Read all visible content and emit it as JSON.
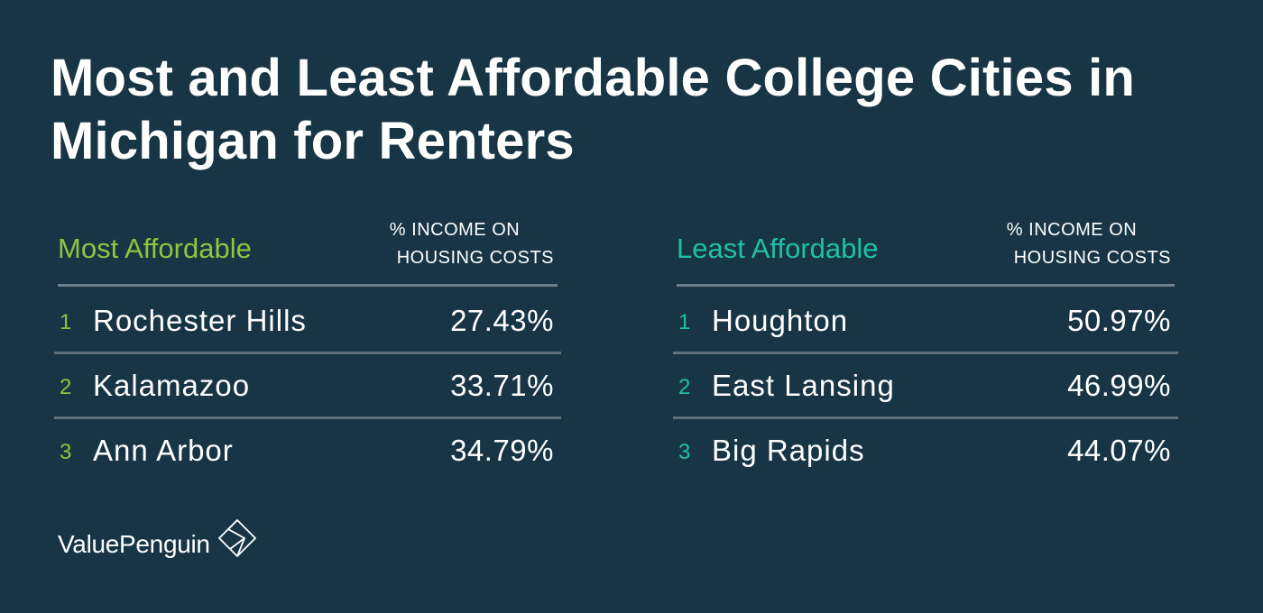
{
  "title": "Most and Least Affordable College Cities in Michigan for Renters",
  "brand": {
    "name": "ValuePenguin",
    "logo_icon": "diamond-logo-icon"
  },
  "colors": {
    "background": "#173544",
    "most_accent": "#8dc63f",
    "least_accent": "#1fc0a8"
  },
  "chart_data": {
    "type": "table",
    "title": "Most and Least Affordable College Cities in Michigan for Renters",
    "tables": [
      {
        "label": "Most Affordable",
        "column_header_line1": "% INCOME ON",
        "column_header_line2": "HOUSING COSTS",
        "rows": [
          {
            "rank": "1",
            "city": "Rochester Hills",
            "value": "27.43%"
          },
          {
            "rank": "2",
            "city": "Kalamazoo",
            "value": "33.71%"
          },
          {
            "rank": "3",
            "city": "Ann Arbor",
            "value": "34.79%"
          }
        ]
      },
      {
        "label": "Least Affordable",
        "column_header_line1": "% INCOME ON",
        "column_header_line2": "HOUSING COSTS",
        "rows": [
          {
            "rank": "1",
            "city": "Houghton",
            "value": "50.97%"
          },
          {
            "rank": "2",
            "city": "East Lansing",
            "value": "46.99%"
          },
          {
            "rank": "3",
            "city": "Big Rapids",
            "value": "44.07%"
          }
        ]
      }
    ]
  }
}
